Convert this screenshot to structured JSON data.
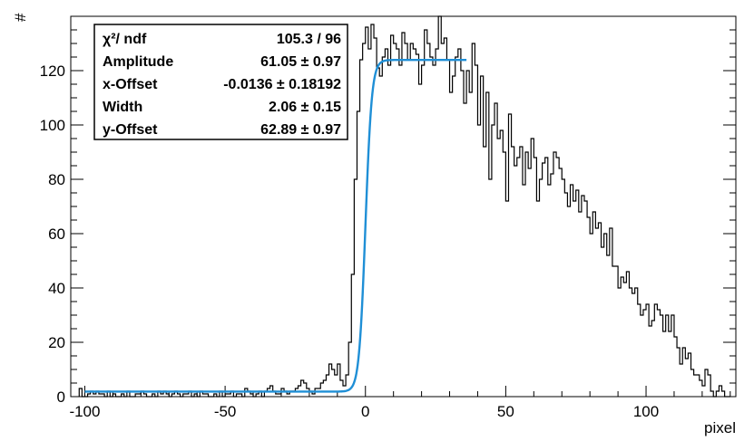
{
  "chart_data": {
    "type": "histogram",
    "xlabel": "pixel",
    "ylabel": "#",
    "xlim": [
      -105,
      132
    ],
    "ylim": [
      0,
      140
    ],
    "x_ticks": [
      -100,
      -50,
      0,
      50,
      100
    ],
    "x_tick_labels": [
      "-100",
      "-50",
      "0",
      "50",
      "100"
    ],
    "y_ticks": [
      0,
      20,
      40,
      60,
      80,
      100,
      120
    ],
    "y_tick_labels": [
      "0",
      "20",
      "40",
      "60",
      "80",
      "100",
      "120"
    ],
    "bin_start": -102,
    "bin_width": 1,
    "bin_contents": [
      3,
      0,
      0,
      1,
      2,
      1,
      2,
      1,
      1,
      0,
      2,
      0,
      1,
      0,
      0,
      1,
      0,
      2,
      0,
      0,
      1,
      1,
      2,
      1,
      0,
      0,
      1,
      0,
      2,
      1,
      2,
      1,
      0,
      1,
      2,
      1,
      0,
      1,
      1,
      2,
      0,
      1,
      0,
      2,
      1,
      1,
      0,
      0,
      1,
      0,
      2,
      0,
      1,
      1,
      2,
      0,
      1,
      1,
      0,
      3,
      2,
      1,
      0,
      1,
      2,
      0,
      2,
      3,
      4,
      2,
      1,
      1,
      3,
      2,
      1,
      2,
      2,
      3,
      4,
      6,
      5,
      3,
      2,
      1,
      3,
      3,
      5,
      6,
      8,
      12,
      10,
      8,
      12,
      6,
      4,
      8,
      20,
      45,
      80,
      105,
      124,
      130,
      136,
      128,
      137,
      132,
      121,
      118,
      125,
      128,
      122,
      133,
      130,
      128,
      122,
      134,
      130,
      124,
      130,
      128,
      126,
      115,
      122,
      135,
      130,
      125,
      122,
      128,
      140,
      130,
      132,
      124,
      112,
      118,
      125,
      128,
      120,
      108,
      120,
      112,
      130,
      122,
      100,
      118,
      92,
      112,
      80,
      100,
      108,
      95,
      98,
      90,
      72,
      104,
      92,
      85,
      88,
      92,
      78,
      90,
      84,
      95,
      88,
      72,
      80,
      86,
      88,
      78,
      82,
      90,
      88,
      84,
      80,
      75,
      70,
      78,
      72,
      76,
      68,
      74,
      72,
      66,
      60,
      68,
      62,
      64,
      55,
      60,
      52,
      62,
      48,
      48,
      40,
      44,
      42,
      46,
      40,
      38,
      40,
      34,
      30,
      32,
      34,
      26,
      28,
      34,
      32,
      30,
      24,
      30,
      24,
      30,
      22,
      18,
      12,
      18,
      14,
      16,
      10,
      8,
      8,
      6,
      4,
      10,
      8,
      2,
      0,
      2,
      4,
      2,
      0,
      0
    ],
    "series": [
      {
        "name": "fit",
        "kind": "step-function fit",
        "x_range": [
          -100,
          36
        ],
        "x0": 0.0,
        "width": 2.06,
        "low": 1.84,
        "high": 123.94
      }
    ],
    "stats_box": [
      {
        "label": "χ²/ ndf",
        "value": "105.3 / 96"
      },
      {
        "label": "Amplitude",
        "value": "61.05 ± 0.97"
      },
      {
        "label": "x-Offset",
        "value": "-0.0136 ± 0.18192"
      },
      {
        "label": "Width",
        "value": "2.06 ± 0.15"
      },
      {
        "label": "y-Offset",
        "value": "62.89 ± 0.97"
      }
    ],
    "colors": {
      "histogram": "#000000",
      "fit": "#1f8fd6",
      "frame": "#000000"
    },
    "grid": false
  }
}
